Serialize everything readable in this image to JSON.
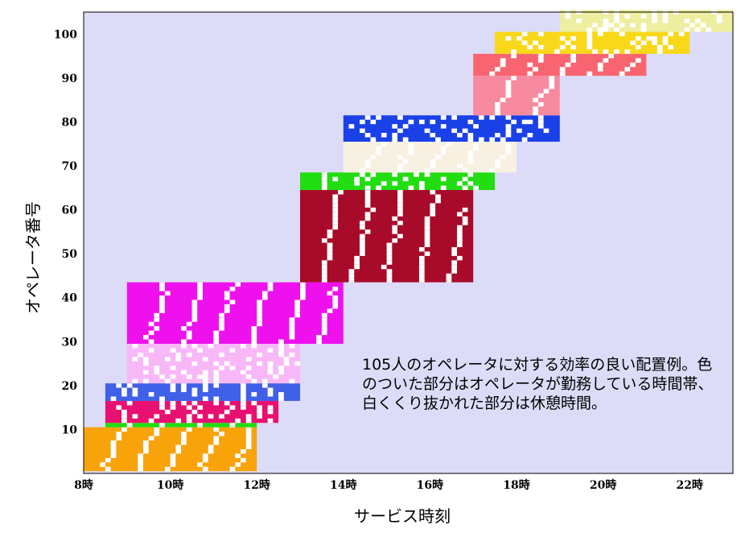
{
  "chart_data": {
    "type": "heatmap",
    "title": "",
    "xlabel": "サービス時刻",
    "ylabel": "オペレータ番号",
    "x_ticks": [
      {
        "value": 8,
        "label": "8時"
      },
      {
        "value": 10,
        "label": "10時"
      },
      {
        "value": 12,
        "label": "12時"
      },
      {
        "value": 14,
        "label": "14時"
      },
      {
        "value": 16,
        "label": "16時"
      },
      {
        "value": 18,
        "label": "18時"
      },
      {
        "value": 20,
        "label": "20時"
      },
      {
        "value": 22,
        "label": "22時"
      }
    ],
    "y_ticks": [
      10,
      20,
      30,
      40,
      50,
      60,
      70,
      80,
      90,
      100
    ],
    "xlim": [
      8,
      23
    ],
    "ylim": [
      0,
      105
    ],
    "grid": false,
    "background": "#dcdcf8",
    "shifts": [
      {
        "start": 8.0,
        "end": 12.0,
        "op_from": 1,
        "op_to": 10,
        "color": "#f8a30a",
        "break_style": "diagonal"
      },
      {
        "start": 8.5,
        "end": 12.0,
        "op_from": 11,
        "op_to": 11,
        "color": "#22dd11",
        "break_style": "diagonal"
      },
      {
        "start": 8.5,
        "end": 12.5,
        "op_from": 12,
        "op_to": 16,
        "color": "#e81070",
        "break_style": "scatter"
      },
      {
        "start": 8.5,
        "end": 13.0,
        "op_from": 17,
        "op_to": 20,
        "color": "#4060e8",
        "break_style": "scatter"
      },
      {
        "start": 9.0,
        "end": 13.0,
        "op_from": 21,
        "op_to": 29,
        "color": "#f8b8f8",
        "break_style": "scatter"
      },
      {
        "start": 9.0,
        "end": 14.0,
        "op_from": 30,
        "op_to": 43,
        "color": "#ee11ee",
        "break_style": "diagonal"
      },
      {
        "start": 13.0,
        "end": 17.0,
        "op_from": 44,
        "op_to": 64,
        "color": "#a80a2a",
        "break_style": "diagonal"
      },
      {
        "start": 13.0,
        "end": 17.5,
        "op_from": 65,
        "op_to": 68,
        "color": "#22dd11",
        "break_style": "scatter"
      },
      {
        "start": 14.0,
        "end": 18.0,
        "op_from": 69,
        "op_to": 75,
        "color": "#f8f0e0",
        "break_style": "diagonal"
      },
      {
        "start": 14.0,
        "end": 19.0,
        "op_from": 76,
        "op_to": 81,
        "color": "#1a40e8",
        "break_style": "scatter"
      },
      {
        "start": 17.0,
        "end": 19.0,
        "op_from": 82,
        "op_to": 90,
        "color": "#f88aa0",
        "break_style": "diagonal"
      },
      {
        "start": 17.0,
        "end": 21.0,
        "op_from": 91,
        "op_to": 95,
        "color": "#f86570",
        "break_style": "diagonal"
      },
      {
        "start": 17.5,
        "end": 22.0,
        "op_from": 96,
        "op_to": 100,
        "color": "#f8d818",
        "break_style": "scatter"
      },
      {
        "start": 19.0,
        "end": 23.0,
        "op_from": 101,
        "op_to": 105,
        "color": "#eeeea0",
        "break_style": "scatter"
      }
    ],
    "annotation": "105人のオペレータに対する効率の良い配置例。色のついた部分はオペレータが勤務している時間帯、白くくり抜かれた部分は休憩時間。"
  }
}
